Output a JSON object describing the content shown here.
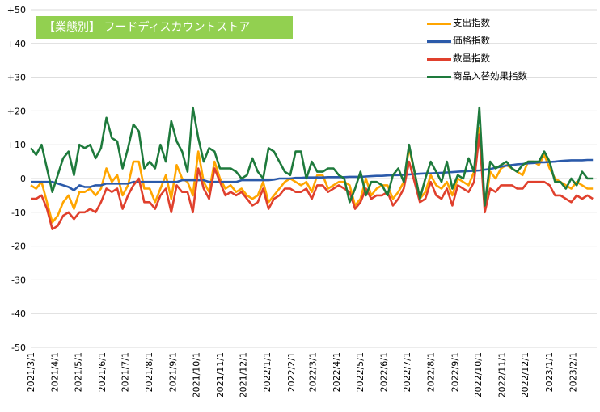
{
  "chart_data": {
    "type": "line",
    "title": "【業態別】 フードディスカウントストア",
    "ylim": [
      -50,
      50
    ],
    "y_ticks": [
      "+50",
      "+40",
      "+30",
      "+20",
      "+10",
      "0",
      "-10",
      "-20",
      "-30",
      "-40",
      "-50"
    ],
    "x_tick_labels": [
      "2021/3/1",
      "2021/4/1",
      "2021/5/1",
      "2021/6/1",
      "2021/7/1",
      "2021/8/1",
      "2021/9/1",
      "2021/10/1",
      "2021/11/1",
      "2021/12/1",
      "2022/1/1",
      "2022/2/1",
      "2022/3/1",
      "2022/4/1",
      "2022/5/1",
      "2022/6/1",
      "2022/7/1",
      "2022/8/1",
      "2022/9/1",
      "2022/10/1",
      "2022/11/1",
      "2022/12/1",
      "2023/1/1",
      "2023/2/1"
    ],
    "x": [
      "2021-03-01",
      "2021-03-08",
      "2021-03-15",
      "2021-03-22",
      "2021-03-29",
      "2021-04-05",
      "2021-04-12",
      "2021-04-19",
      "2021-04-26",
      "2021-05-03",
      "2021-05-10",
      "2021-05-17",
      "2021-05-24",
      "2021-05-31",
      "2021-06-07",
      "2021-06-14",
      "2021-06-21",
      "2021-06-28",
      "2021-07-05",
      "2021-07-12",
      "2021-07-19",
      "2021-07-26",
      "2021-08-02",
      "2021-08-09",
      "2021-08-16",
      "2021-08-23",
      "2021-08-30",
      "2021-09-06",
      "2021-09-13",
      "2021-09-20",
      "2021-09-27",
      "2021-10-04",
      "2021-10-11",
      "2021-10-18",
      "2021-10-25",
      "2021-11-01",
      "2021-11-08",
      "2021-11-15",
      "2021-11-22",
      "2021-11-29",
      "2021-12-06",
      "2021-12-13",
      "2021-12-20",
      "2021-12-27",
      "2022-01-03",
      "2022-01-10",
      "2022-01-17",
      "2022-01-24",
      "2022-01-31",
      "2022-02-07",
      "2022-02-14",
      "2022-02-21",
      "2022-02-28",
      "2022-03-07",
      "2022-03-14",
      "2022-03-21",
      "2022-03-28",
      "2022-04-04",
      "2022-04-11",
      "2022-04-18",
      "2022-04-25",
      "2022-05-02",
      "2022-05-09",
      "2022-05-16",
      "2022-05-23",
      "2022-05-30",
      "2022-06-06",
      "2022-06-13",
      "2022-06-20",
      "2022-06-27",
      "2022-07-04",
      "2022-07-11",
      "2022-07-18",
      "2022-07-25",
      "2022-08-01",
      "2022-08-08",
      "2022-08-15",
      "2022-08-22",
      "2022-08-29",
      "2022-09-05",
      "2022-09-12",
      "2022-09-19",
      "2022-09-26",
      "2022-10-03",
      "2022-10-10",
      "2022-10-17",
      "2022-10-24",
      "2022-10-31",
      "2022-11-07",
      "2022-11-14",
      "2022-11-21",
      "2022-11-28",
      "2022-12-05",
      "2022-12-12",
      "2022-12-19",
      "2022-12-26",
      "2023-01-02",
      "2023-01-09",
      "2023-01-16",
      "2023-01-23",
      "2023-01-30",
      "2023-02-06",
      "2023-02-13",
      "2023-02-20",
      "2023-02-27"
    ],
    "series": [
      {
        "name": "支出指数",
        "color": "#ffa500",
        "values": [
          -2,
          -3,
          -1,
          -7,
          -13,
          -11,
          -7,
          -5,
          -9,
          -4,
          -4,
          -3,
          -5,
          -3,
          3,
          -1,
          1,
          -5,
          -2,
          5,
          5,
          -3,
          -3,
          -7,
          -3,
          1,
          -6,
          4,
          0,
          -1,
          -5,
          8,
          -1,
          -4,
          5,
          0,
          -3,
          -2,
          -4,
          -3,
          -5,
          -6,
          -5,
          -1,
          -7,
          -5,
          -3,
          -1,
          0,
          -1,
          -2,
          -1,
          -4,
          1,
          1,
          -3,
          -2,
          -1,
          -1,
          -2,
          -8,
          -6,
          0,
          -5,
          -3,
          -2,
          -2,
          -6,
          -4,
          -1,
          9,
          2,
          -6,
          -4,
          1,
          -2,
          -3,
          -1,
          -5,
          0,
          -1,
          -2,
          2,
          15,
          -9,
          2,
          0,
          3,
          4,
          3,
          2,
          1,
          5,
          5,
          4,
          7,
          3,
          0,
          -1,
          -2,
          -3,
          -1,
          -2,
          -3,
          -3
        ]
      },
      {
        "name": "価格指数",
        "color": "#2b5aaa",
        "values": [
          -1,
          -1,
          -1,
          -1,
          -1,
          -1.5,
          -2,
          -2.5,
          -3.5,
          -2,
          -2.5,
          -2.5,
          -2,
          -2,
          -1.5,
          -1.5,
          -1.5,
          -1.5,
          -1.5,
          -1,
          -1,
          -1,
          -1,
          -1,
          -1,
          -1,
          -1,
          -1,
          -0.5,
          -0.5,
          -0.5,
          -0.5,
          -0.5,
          -1,
          -1,
          -1,
          -1,
          -1,
          -1,
          -0.5,
          -0.5,
          -0.5,
          -0.5,
          -0.5,
          -0.5,
          -0.3,
          0,
          0,
          0,
          0.2,
          0.2,
          0.3,
          0.3,
          0.3,
          0.3,
          0.4,
          0.4,
          0.4,
          0.4,
          0.5,
          0.5,
          0.5,
          0.6,
          0.7,
          0.8,
          0.8,
          0.9,
          1,
          1,
          1.1,
          1.2,
          1.3,
          1.4,
          1.5,
          1.5,
          1.6,
          1.7,
          1.8,
          1.9,
          2,
          2.1,
          2.2,
          2.3,
          2.4,
          2.6,
          2.8,
          3.2,
          3.5,
          3.8,
          4,
          4.2,
          4.3,
          4.5,
          4.6,
          4.8,
          4.8,
          4.9,
          5,
          5.2,
          5.3,
          5.4,
          5.4,
          5.4,
          5.5,
          5.5
        ]
      },
      {
        "name": "数量指数",
        "color": "#e0402d",
        "values": [
          -6,
          -6,
          -5,
          -9,
          -15,
          -14,
          -11,
          -10,
          -12,
          -10,
          -10,
          -9,
          -10,
          -7,
          -3,
          -4,
          -3,
          -9,
          -5,
          -2,
          0,
          -7,
          -7,
          -9,
          -5,
          -3,
          -10,
          -2,
          -4,
          -4,
          -10,
          3,
          -3,
          -6,
          3,
          -1,
          -5,
          -4,
          -5,
          -4,
          -6,
          -8,
          -7,
          -3,
          -9,
          -6,
          -5,
          -3,
          -3,
          -4,
          -4,
          -3,
          -6,
          -2,
          -2,
          -4,
          -3,
          -2,
          -3,
          -4,
          -9,
          -7,
          -3,
          -6,
          -5,
          -5,
          -4,
          -8,
          -6,
          -3,
          5,
          -1,
          -7,
          -6,
          -1,
          -5,
          -6,
          -3,
          -8,
          -2,
          -3,
          -4,
          -1,
          13,
          -10,
          -3,
          -4,
          -2,
          -2,
          -2,
          -3,
          -3,
          -1,
          -1,
          -1,
          -1,
          -2,
          -5,
          -5,
          -6,
          -7,
          -5,
          -6,
          -5,
          -6
        ]
      },
      {
        "name": "商品入替効果指数",
        "color": "#1e7a3c",
        "values": [
          9,
          7,
          10,
          3,
          -4,
          1,
          6,
          8,
          1,
          10,
          9,
          10,
          6,
          9,
          18,
          12,
          11,
          3,
          9,
          16,
          14,
          3,
          5,
          3,
          10,
          5,
          17,
          11,
          8,
          2,
          21,
          12,
          5,
          9,
          8,
          3,
          3,
          3,
          2,
          0,
          1,
          6,
          2,
          0,
          9,
          8,
          5,
          2,
          1,
          8,
          8,
          0,
          5,
          2,
          2,
          3,
          3,
          1,
          0,
          -7,
          -3,
          2,
          -5,
          -1,
          -1,
          -2,
          -5,
          1,
          3,
          -1,
          10,
          2,
          -6,
          0,
          5,
          2,
          -1,
          5,
          -3,
          1,
          0,
          6,
          2,
          21,
          -8,
          5,
          3,
          4,
          5,
          3,
          2,
          4,
          5,
          5,
          5,
          8,
          5,
          -1,
          -1,
          -3,
          0,
          -2,
          2,
          0,
          0
        ]
      }
    ]
  }
}
